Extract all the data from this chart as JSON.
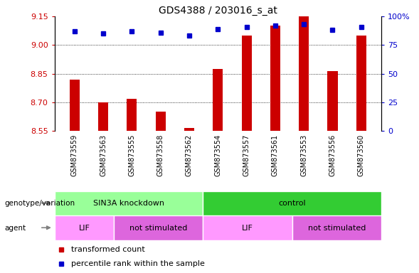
{
  "title": "GDS4388 / 203016_s_at",
  "samples": [
    "GSM873559",
    "GSM873563",
    "GSM873555",
    "GSM873558",
    "GSM873562",
    "GSM873554",
    "GSM873557",
    "GSM873561",
    "GSM873553",
    "GSM873556",
    "GSM873560"
  ],
  "transformed_counts": [
    8.82,
    8.7,
    8.72,
    8.65,
    8.565,
    8.875,
    9.05,
    9.1,
    9.15,
    8.865,
    9.05
  ],
  "percentile_ranks": [
    87,
    85,
    87,
    86,
    83,
    89,
    91,
    92,
    93,
    88,
    91
  ],
  "ylim_left": [
    8.55,
    9.15
  ],
  "ylim_right": [
    0,
    100
  ],
  "yticks_left": [
    8.55,
    8.7,
    8.85,
    9.0,
    9.15
  ],
  "yticks_right": [
    0,
    25,
    50,
    75,
    100
  ],
  "bar_color": "#cc0000",
  "dot_color": "#0000cc",
  "bar_bottom": 8.55,
  "groups": [
    {
      "label": "SIN3A knockdown",
      "start": 0,
      "end": 5,
      "color": "#99ff99"
    },
    {
      "label": "control",
      "start": 5,
      "end": 11,
      "color": "#33cc33"
    }
  ],
  "agents": [
    {
      "label": "LIF",
      "start": 0,
      "end": 2,
      "color": "#ff99ff"
    },
    {
      "label": "not stimulated",
      "start": 2,
      "end": 5,
      "color": "#dd66dd"
    },
    {
      "label": "LIF",
      "start": 5,
      "end": 8,
      "color": "#ff99ff"
    },
    {
      "label": "not stimulated",
      "start": 8,
      "end": 11,
      "color": "#dd66dd"
    }
  ],
  "legend_items": [
    {
      "label": "transformed count",
      "color": "#cc0000"
    },
    {
      "label": "percentile rank within the sample",
      "color": "#0000cc"
    }
  ],
  "left_label_color": "#cc0000",
  "right_label_color": "#0000cc",
  "genotype_label": "genotype/variation",
  "agent_label": "agent",
  "xticklabel_bg": "#cccccc",
  "bar_width": 0.35
}
